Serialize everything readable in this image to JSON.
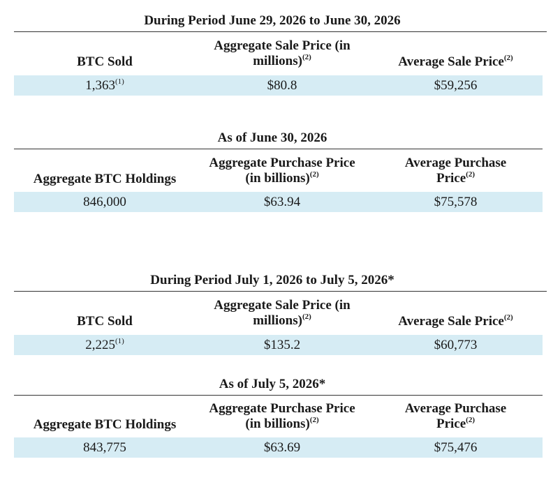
{
  "sup_note1": "(1)",
  "sup_note2": "(2)",
  "sections": [
    {
      "title": "During Period June 29, 2026 to June 30, 2026",
      "headers": [
        "BTC Sold",
        "Aggregate Sale Price (in",
        "millions)",
        "Average Sale Price"
      ],
      "row": [
        "1,363",
        "$80.8",
        "$59,256"
      ]
    },
    {
      "title": "As of June 30, 2026",
      "headers": [
        "Aggregate BTC Holdings",
        "Aggregate Purchase Price",
        "(in billions)",
        "Average Purchase",
        "Price"
      ],
      "row": [
        "846,000",
        "$63.94",
        "$75,578"
      ]
    },
    {
      "title": "During Period July 1, 2026 to July 5, 2026*",
      "headers": [
        "BTC Sold",
        "Aggregate Sale Price (in",
        "millions)",
        "Average Sale Price"
      ],
      "row": [
        "2,225",
        "$135.2",
        "$60,773"
      ]
    },
    {
      "title": "As of July 5, 2026*",
      "headers": [
        "Aggregate BTC Holdings",
        "Aggregate Purchase Price",
        "(in billions)",
        "Average Purchase",
        "Price"
      ],
      "row": [
        "843,775",
        "$63.69",
        "$75,476"
      ]
    }
  ]
}
